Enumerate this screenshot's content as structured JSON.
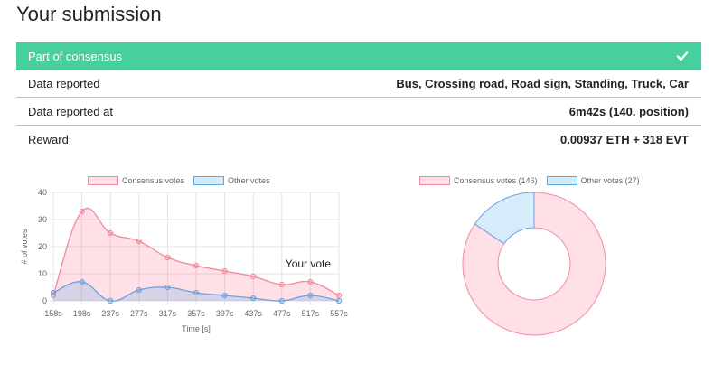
{
  "title": "Your submission",
  "status": {
    "label": "Part of consensus",
    "icon": "check-icon"
  },
  "rows": [
    {
      "label": "Data reported",
      "value": "Bus, Crossing road, Road sign, Standing, Truck, Car"
    },
    {
      "label": "Data reported at",
      "value": "6m42s (140. position)"
    },
    {
      "label": "Reward",
      "value": "0.00937 ETH + 318 EVT"
    }
  ],
  "colors": {
    "accent": "#47cf9e",
    "consensus_line": "#f08aa1",
    "consensus_fill": "rgba(255, 99, 132, 0.2)",
    "other_line": "#6f9fdc",
    "other_fill": "rgba(54, 162, 235, 0.2)"
  },
  "chart_data": [
    {
      "type": "line",
      "x": [
        "158s",
        "198s",
        "237s",
        "277s",
        "317s",
        "357s",
        "397s",
        "437s",
        "477s",
        "517s",
        "557s"
      ],
      "series": [
        {
          "name": "Consensus votes",
          "values": [
            2,
            33,
            25,
            22,
            16,
            13,
            11,
            9,
            6,
            7,
            2
          ]
        },
        {
          "name": "Other votes",
          "values": [
            3,
            7,
            0,
            4,
            5,
            3,
            2,
            1,
            0,
            2,
            0
          ]
        }
      ],
      "xlabel": "Time [s]",
      "ylabel": "# of votes",
      "yticks": [
        "0",
        "10",
        "20",
        "30",
        "40"
      ],
      "ylim": [
        0,
        40
      ],
      "annotation": {
        "text": "Your vote",
        "x": "477s"
      },
      "grid": true,
      "legend": "top",
      "fill": true,
      "smooth": true
    },
    {
      "type": "pie",
      "variant": "doughnut",
      "labels": [
        "Consensus votes (146)",
        "Other votes (27)"
      ],
      "values": [
        146,
        27
      ],
      "legend": "top"
    }
  ]
}
